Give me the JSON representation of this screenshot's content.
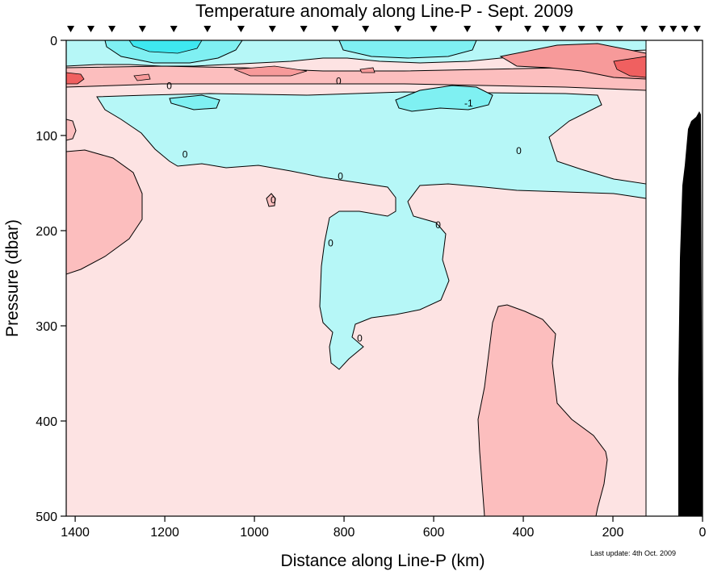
{
  "chart_data": {
    "type": "heatmap",
    "title": "Temperature anomaly along Line-P - Sept. 2009",
    "xlabel": "Distance along Line-P (km)",
    "ylabel": "Pressure (dbar)",
    "xlim": [
      1420,
      0
    ],
    "ylim": [
      0,
      500
    ],
    "x_ticks": [
      1400,
      1200,
      1000,
      800,
      600,
      400,
      200,
      0
    ],
    "y_ticks": [
      0,
      100,
      200,
      300,
      400,
      500
    ],
    "y_inverted": true,
    "grid": false,
    "data_extent_km": 125,
    "station_km": [
      1410,
      1365,
      1318,
      1250,
      1180,
      1105,
      1030,
      960,
      890,
      820,
      752,
      680,
      600,
      525,
      455,
      390,
      350,
      312,
      270,
      230,
      185,
      130,
      90,
      65,
      40,
      12
    ],
    "contour_labels": [
      {
        "text": "0",
        "x": 1190,
        "y": 48
      },
      {
        "text": "0",
        "x": 812,
        "y": 43
      },
      {
        "text": "-1",
        "x": 522,
        "y": 66
      },
      {
        "text": "0",
        "x": 1155,
        "y": 120
      },
      {
        "text": "0",
        "x": 410,
        "y": 116
      },
      {
        "text": "0",
        "x": 808,
        "y": 143
      },
      {
        "text": "0",
        "x": 958,
        "y": 168
      },
      {
        "text": "0",
        "x": 590,
        "y": 194
      },
      {
        "text": "0",
        "x": 830,
        "y": 213
      },
      {
        "text": "0",
        "x": 765,
        "y": 313
      }
    ],
    "colors": {
      "zero_to_plus1": "#fde3e3",
      "plus1_to_plus2": "#fcbebe",
      "plus2_to_plus3": "#f79a9a",
      "plus3_plus": "#f06060",
      "minus1_to_0": "#b6f7f7",
      "minus2_to_minus1": "#7ff0f2",
      "minus2_minus": "#3ee8f0",
      "bathymetry": "#000000",
      "no_data": "#ffffff"
    }
  },
  "footer": {
    "update_note": "Last update: 4th Oct. 2009"
  }
}
